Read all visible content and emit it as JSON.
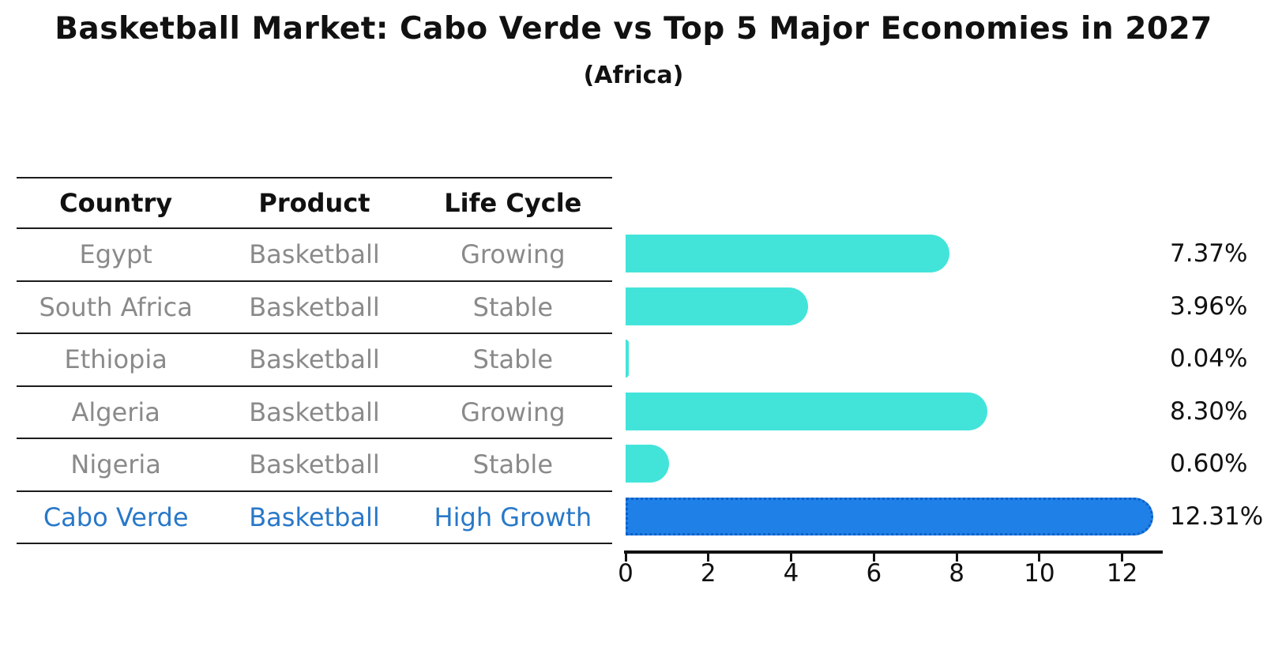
{
  "title": "Basketball Market: Cabo Verde vs Top 5 Major Economies in 2027",
  "subtitle": "(Africa)",
  "table": {
    "headers": [
      "Country",
      "Product",
      "Life Cycle"
    ],
    "rows": [
      {
        "country": "Egypt",
        "product": "Basketball",
        "life_cycle": "Growing",
        "highlight": false
      },
      {
        "country": "South Africa",
        "product": "Basketball",
        "life_cycle": "Stable",
        "highlight": false
      },
      {
        "country": "Ethiopia",
        "product": "Basketball",
        "life_cycle": "Stable",
        "highlight": false
      },
      {
        "country": "Algeria",
        "product": "Basketball",
        "life_cycle": "Growing",
        "highlight": false
      },
      {
        "country": "Nigeria",
        "product": "Basketball",
        "life_cycle": "Stable",
        "highlight": false
      },
      {
        "country": "Cabo Verde",
        "product": "Basketball",
        "life_cycle": "High Growth",
        "highlight": true
      }
    ]
  },
  "chart_data": {
    "type": "bar",
    "orientation": "horizontal",
    "title": "Basketball Market: Cabo Verde vs Top 5 Major Economies in 2027",
    "subtitle": "(Africa)",
    "categories": [
      "Egypt",
      "South Africa",
      "Ethiopia",
      "Algeria",
      "Nigeria",
      "Cabo Verde"
    ],
    "values": [
      7.37,
      3.96,
      0.04,
      8.3,
      0.6,
      12.31
    ],
    "value_labels": [
      "7.37%",
      "3.96%",
      "0.04%",
      "8.30%",
      "0.60%",
      "12.31%"
    ],
    "xlabel": "",
    "ylabel": "",
    "xticks": [
      0,
      2,
      4,
      6,
      8,
      10,
      12
    ],
    "xlim": [
      0,
      12.98
    ],
    "grid": false,
    "legend": "none",
    "highlight_index": 5
  },
  "colors": {
    "bar": "#42e4da",
    "highlight_bar": "#1f81e8",
    "highlight_border": "#0f5fc8",
    "highlight_text": "#2878c8",
    "row_text": "#8a8a8a",
    "header_text": "#111111",
    "axis": "#111111"
  }
}
